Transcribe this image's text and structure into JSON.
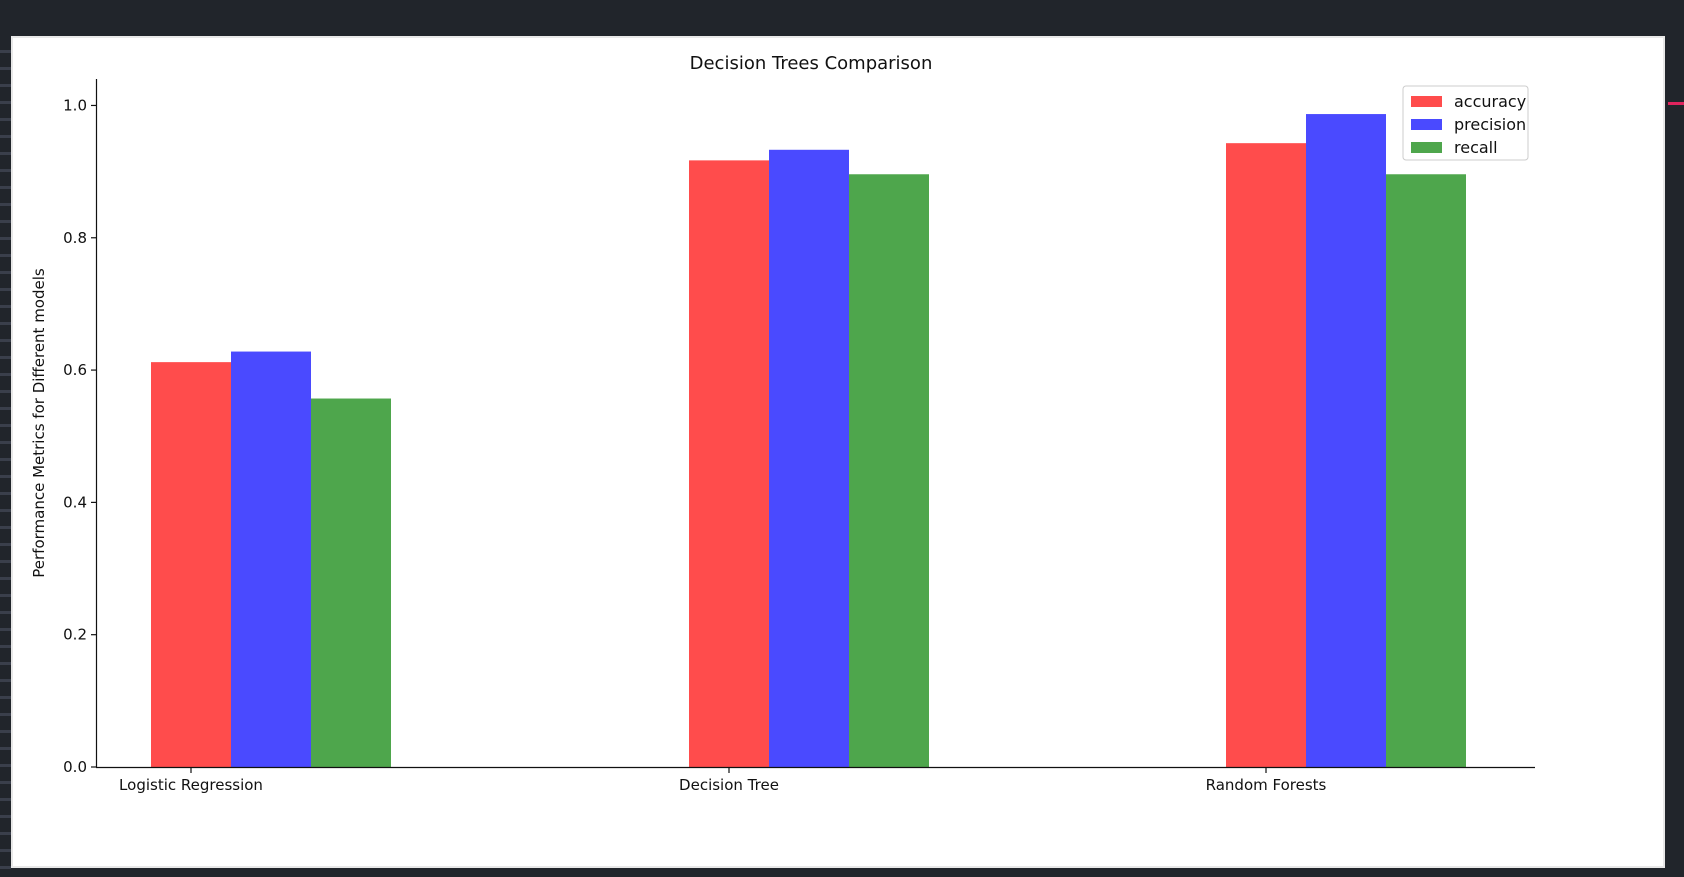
{
  "chart_data": {
    "type": "bar",
    "title": "Decision Trees Comparison",
    "xlabel": "",
    "ylabel": "Performance Metrics for Different models",
    "categories": [
      "Logistic Regression",
      "Decision Tree",
      "Random Forests"
    ],
    "series": [
      {
        "name": "accuracy",
        "color": "#ff4c4c",
        "values": [
          0.612,
          0.917,
          0.943
        ]
      },
      {
        "name": "precision",
        "color": "#4a4aff",
        "values": [
          0.628,
          0.933,
          0.987
        ]
      },
      {
        "name": "recall",
        "color": "#4ea64c",
        "values": [
          0.557,
          0.896,
          0.896
        ]
      }
    ],
    "ylim": [
      0,
      1.04
    ],
    "yticks": [
      "0.0",
      "0.2",
      "0.4",
      "0.6",
      "0.8",
      "1.0"
    ],
    "grid": false,
    "legend_position": "top-right"
  },
  "colors": {
    "background": "#21252b",
    "figure": "#ffffff",
    "marker": "#e0245e"
  }
}
